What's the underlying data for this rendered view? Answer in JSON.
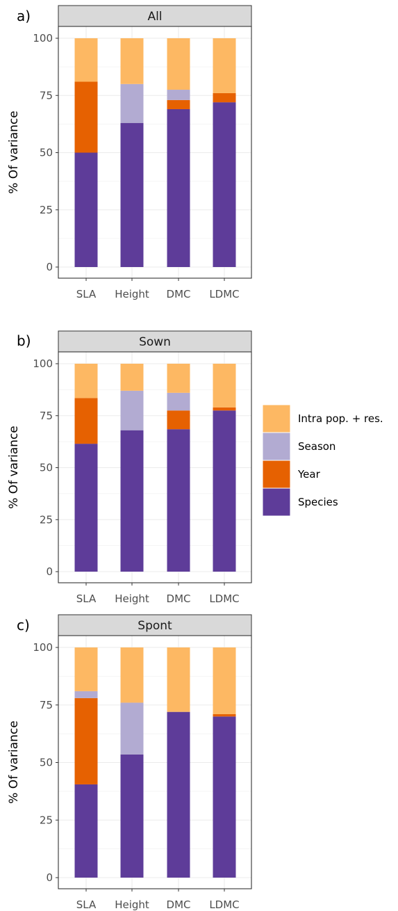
{
  "colors": {
    "Intra pop. + res.": "#fdb863",
    "Season": "#b2abd2",
    "Year": "#e66101",
    "Species": "#5e3c99"
  },
  "legend": {
    "items": [
      "Intra pop. + res.",
      "Season",
      "Year",
      "Species"
    ]
  },
  "chart_data": [
    {
      "type": "bar",
      "panel_letter": "a)",
      "title": "All",
      "ylabel": "% Of variance",
      "categories": [
        "SLA",
        "Height",
        "DMC",
        "LDMC"
      ],
      "ylim": [
        0,
        100
      ],
      "yticks": [
        0,
        25,
        50,
        75,
        100
      ],
      "stacked": true,
      "series": [
        {
          "name": "Species",
          "values": [
            50,
            63,
            69,
            72
          ]
        },
        {
          "name": "Year",
          "values": [
            31,
            0,
            4,
            4
          ]
        },
        {
          "name": "Season",
          "values": [
            0,
            17,
            4.5,
            0
          ]
        },
        {
          "name": "Intra pop. + res.",
          "values": [
            19,
            20,
            22.5,
            24
          ]
        }
      ]
    },
    {
      "type": "bar",
      "panel_letter": "b)",
      "title": "Sown",
      "ylabel": "% Of variance",
      "categories": [
        "SLA",
        "Height",
        "DMC",
        "LDMC"
      ],
      "ylim": [
        0,
        100
      ],
      "yticks": [
        0,
        25,
        50,
        75,
        100
      ],
      "stacked": true,
      "series": [
        {
          "name": "Species",
          "values": [
            61.5,
            68,
            68.5,
            77.5
          ]
        },
        {
          "name": "Year",
          "values": [
            22,
            0,
            9,
            1.5
          ]
        },
        {
          "name": "Season",
          "values": [
            0,
            19,
            8.5,
            0
          ]
        },
        {
          "name": "Intra pop. + res.",
          "values": [
            16.5,
            13,
            14,
            21
          ]
        }
      ]
    },
    {
      "type": "bar",
      "panel_letter": "c)",
      "title": "Spont",
      "ylabel": "% Of variance",
      "categories": [
        "SLA",
        "Height",
        "DMC",
        "LDMC"
      ],
      "ylim": [
        0,
        100
      ],
      "yticks": [
        0,
        25,
        50,
        75,
        100
      ],
      "stacked": true,
      "series": [
        {
          "name": "Species",
          "values": [
            40.5,
            53.5,
            72,
            70
          ]
        },
        {
          "name": "Year",
          "values": [
            37.5,
            0,
            0,
            1
          ]
        },
        {
          "name": "Season",
          "values": [
            3,
            22.5,
            0,
            0
          ]
        },
        {
          "name": "Intra pop. + res.",
          "values": [
            19,
            24,
            28,
            29
          ]
        }
      ]
    }
  ]
}
